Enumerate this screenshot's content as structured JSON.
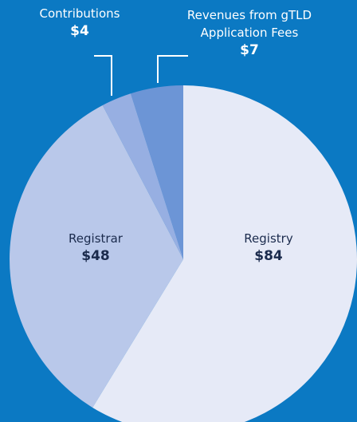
{
  "chart_data": {
    "type": "pie",
    "categories": [
      "Registry",
      "Registrar",
      "Contributions",
      "Revenues from gTLD Application Fees"
    ],
    "values": [
      84,
      48,
      4,
      7
    ],
    "value_labels": [
      "$84",
      "$48",
      "$4",
      "$7"
    ],
    "colors": [
      "#e6eaf7",
      "#b9c8ea",
      "#97afe2",
      "#6c95d6"
    ]
  }
}
